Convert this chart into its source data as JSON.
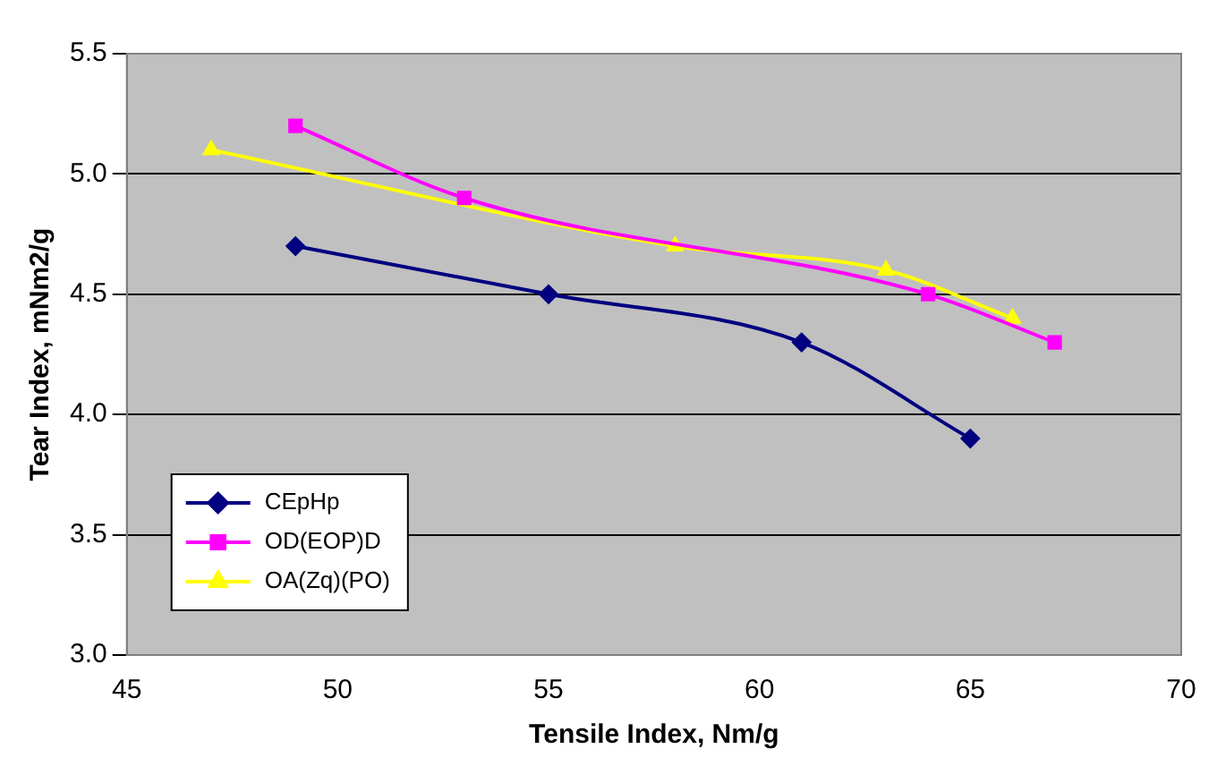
{
  "chart_data": {
    "type": "line",
    "xlabel": "Tensile Index, Nm/g",
    "ylabel": "Tear Index, mNm2/g",
    "xlim": [
      45,
      70
    ],
    "xticks": [
      45,
      50,
      55,
      60,
      65,
      70
    ],
    "ylim": [
      3,
      5.5
    ],
    "yticks": [
      {
        "value": 3,
        "label": "3.0"
      },
      {
        "value": 3.5,
        "label": "3.5"
      },
      {
        "value": 4,
        "label": "4.0"
      },
      {
        "value": 4.5,
        "label": "4.5"
      },
      {
        "value": 5,
        "label": "5.0"
      },
      {
        "value": 5.5,
        "label": "5.5"
      }
    ],
    "grid": "y",
    "legend": "bottom left",
    "series": [
      {
        "name": "CEpHp",
        "color": "#000080",
        "marker": "diamond",
        "x": [
          49,
          55,
          61,
          65
        ],
        "values": [
          4.7,
          4.5,
          4.3,
          3.9
        ]
      },
      {
        "name": "OD(EOP)D",
        "color": "#ff00ff",
        "marker": "square",
        "x": [
          49,
          53,
          64,
          67
        ],
        "values": [
          5.2,
          4.9,
          4.5,
          4.3
        ]
      },
      {
        "name": "OA(Zq)(PO)",
        "color": "#ffff00",
        "marker": "triangle",
        "x": [
          47,
          53,
          58,
          63,
          66
        ],
        "values": [
          5.1,
          null,
          4.7,
          4.6,
          4.4
        ]
      }
    ]
  }
}
